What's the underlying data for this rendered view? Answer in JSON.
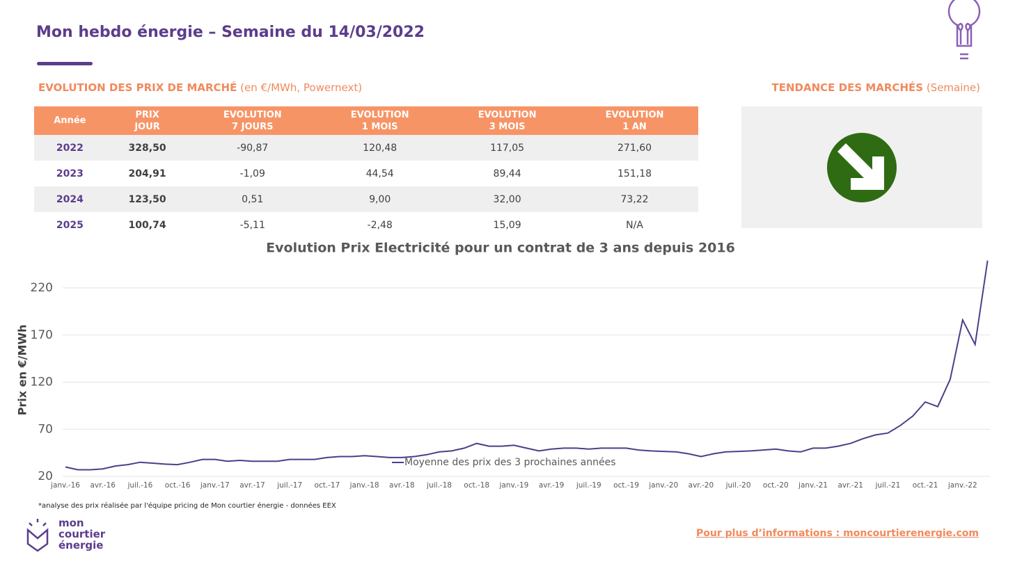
{
  "header": {
    "title": "Mon hebdo énergie – Semaine du 14/03/2022"
  },
  "table": {
    "title": "EVOLUTION DES PRIX DE MARCHÉ",
    "subtitle": "(en €/MWh, Powernext)",
    "columns": [
      "Année",
      "PRIX\nJOUR",
      "EVOLUTION\n7 JOURS",
      "EVOLUTION\n1 MOIS",
      "EVOLUTION\n3 MOIS",
      "EVOLUTION\n1 AN"
    ],
    "rows": [
      [
        "2022",
        "328,50",
        "-90,87",
        "120,48",
        "117,05",
        "271,60"
      ],
      [
        "2023",
        "204,91",
        "-1,09",
        "44,54",
        "89,44",
        "151,18"
      ],
      [
        "2024",
        "123,50",
        "0,51",
        "9,00",
        "32,00",
        "73,22"
      ],
      [
        "2025",
        "100,74",
        "-5,11",
        "-2,48",
        "15,09",
        "N/A"
      ]
    ]
  },
  "trend": {
    "title": "TENDANCE DES MARCHÉS",
    "subtitle": "(Semaine)"
  },
  "chart_data": {
    "type": "line",
    "title": "Evolution Prix Electricité pour un contrat de 3 ans depuis 2016",
    "y_label": "Prix en €/MWh",
    "categories": [
      "janv.-16",
      null,
      null,
      "avr.-16",
      null,
      null,
      "juil.-16",
      null,
      null,
      "oct.-16",
      null,
      null,
      "janv.-17",
      null,
      null,
      "avr.-17",
      null,
      null,
      "juil.-17",
      null,
      null,
      "oct.-17",
      null,
      null,
      "janv.-18",
      null,
      null,
      "avr.-18",
      null,
      null,
      "juil.-18",
      null,
      null,
      "oct.-18",
      null,
      null,
      "janv.-19",
      null,
      null,
      "avr.-19",
      null,
      null,
      "juil.-19",
      null,
      null,
      "oct.-19",
      null,
      null,
      "janv.-20",
      null,
      null,
      "avr.-20",
      null,
      null,
      "juil.-20",
      null,
      null,
      "oct.-20",
      null,
      null,
      "janv.-21",
      null,
      null,
      "avr.-21",
      null,
      null,
      "juil.-21",
      null,
      null,
      "oct.-21",
      null,
      null,
      "janv.-22",
      null,
      null
    ],
    "series": [
      {
        "name": "Moyenne des prix des 3 prochaines années",
        "color": "#4e3d8a",
        "values": [
          30,
          27,
          27,
          28,
          31,
          32.5,
          35,
          34,
          33,
          32.5,
          35,
          38,
          38,
          36,
          37,
          36,
          36,
          36,
          38,
          38,
          38,
          40,
          41,
          41,
          42,
          41,
          40,
          40,
          41,
          43,
          46,
          47,
          50,
          55,
          52,
          52,
          53,
          50,
          47,
          49,
          50,
          50,
          49,
          50,
          50,
          50,
          48,
          47,
          46.5,
          46,
          44,
          41,
          44,
          46,
          46.5,
          47,
          48,
          49,
          47,
          46,
          50,
          50,
          52,
          55,
          60,
          64,
          66,
          74,
          84,
          99,
          94,
          123,
          186,
          160,
          249
        ]
      }
    ],
    "ylim": [
      20,
      250
    ],
    "yticks": [
      20,
      70,
      120,
      170,
      220
    ],
    "grid": true,
    "legend": "bottom"
  },
  "footer": {
    "note": "*analyse des prix réalisée par l'équipe pricing de Mon courtier énergie -  données EEX",
    "logo": [
      "mon",
      "courtier",
      "énergie"
    ],
    "link": "Pour plus d’informations : moncourtierenergie.com"
  }
}
